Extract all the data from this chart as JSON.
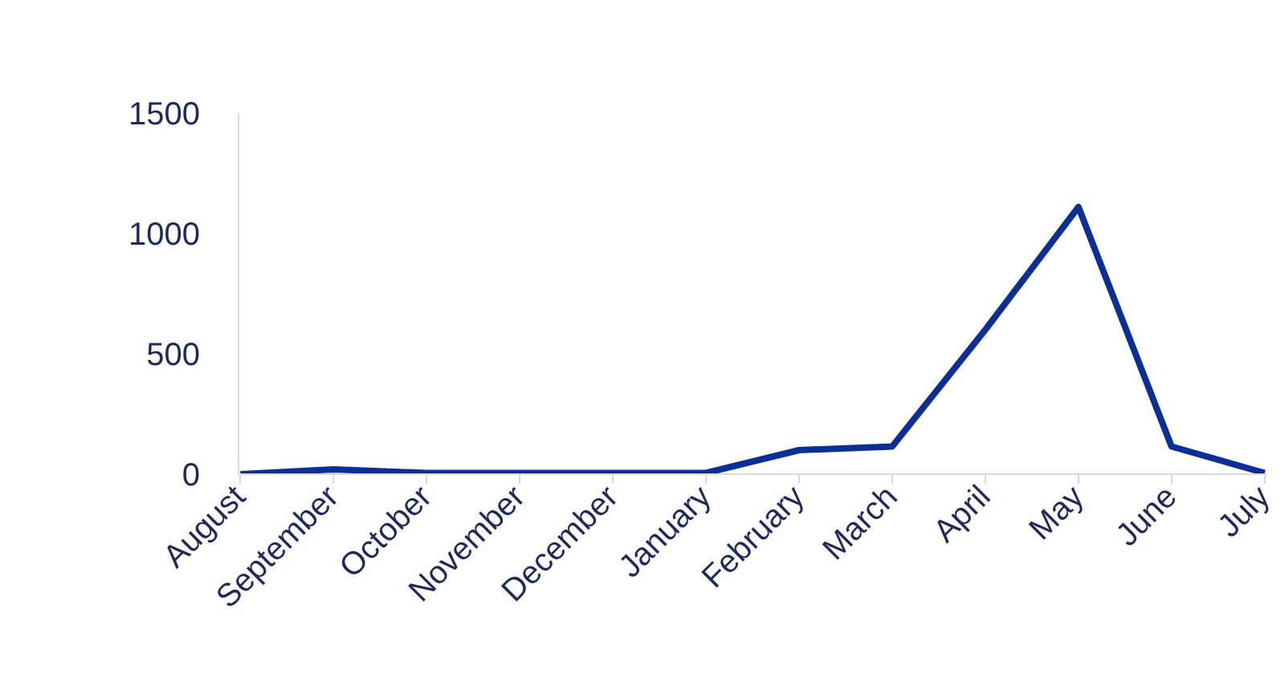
{
  "chart_data": {
    "type": "line",
    "categories": [
      "August",
      "September",
      "October",
      "November",
      "December",
      "January",
      "February",
      "March",
      "April",
      "May",
      "June",
      "July"
    ],
    "series": [
      {
        "color": "#0b2f96",
        "values": [
          0,
          20,
          5,
          5,
          5,
          5,
          100,
          115,
          600,
          1110,
          115,
          5
        ]
      }
    ],
    "ylim": [
      0,
      1500
    ],
    "yticks": [
      0,
      500,
      1000,
      1500
    ],
    "grid": false,
    "line_style": "solid"
  }
}
